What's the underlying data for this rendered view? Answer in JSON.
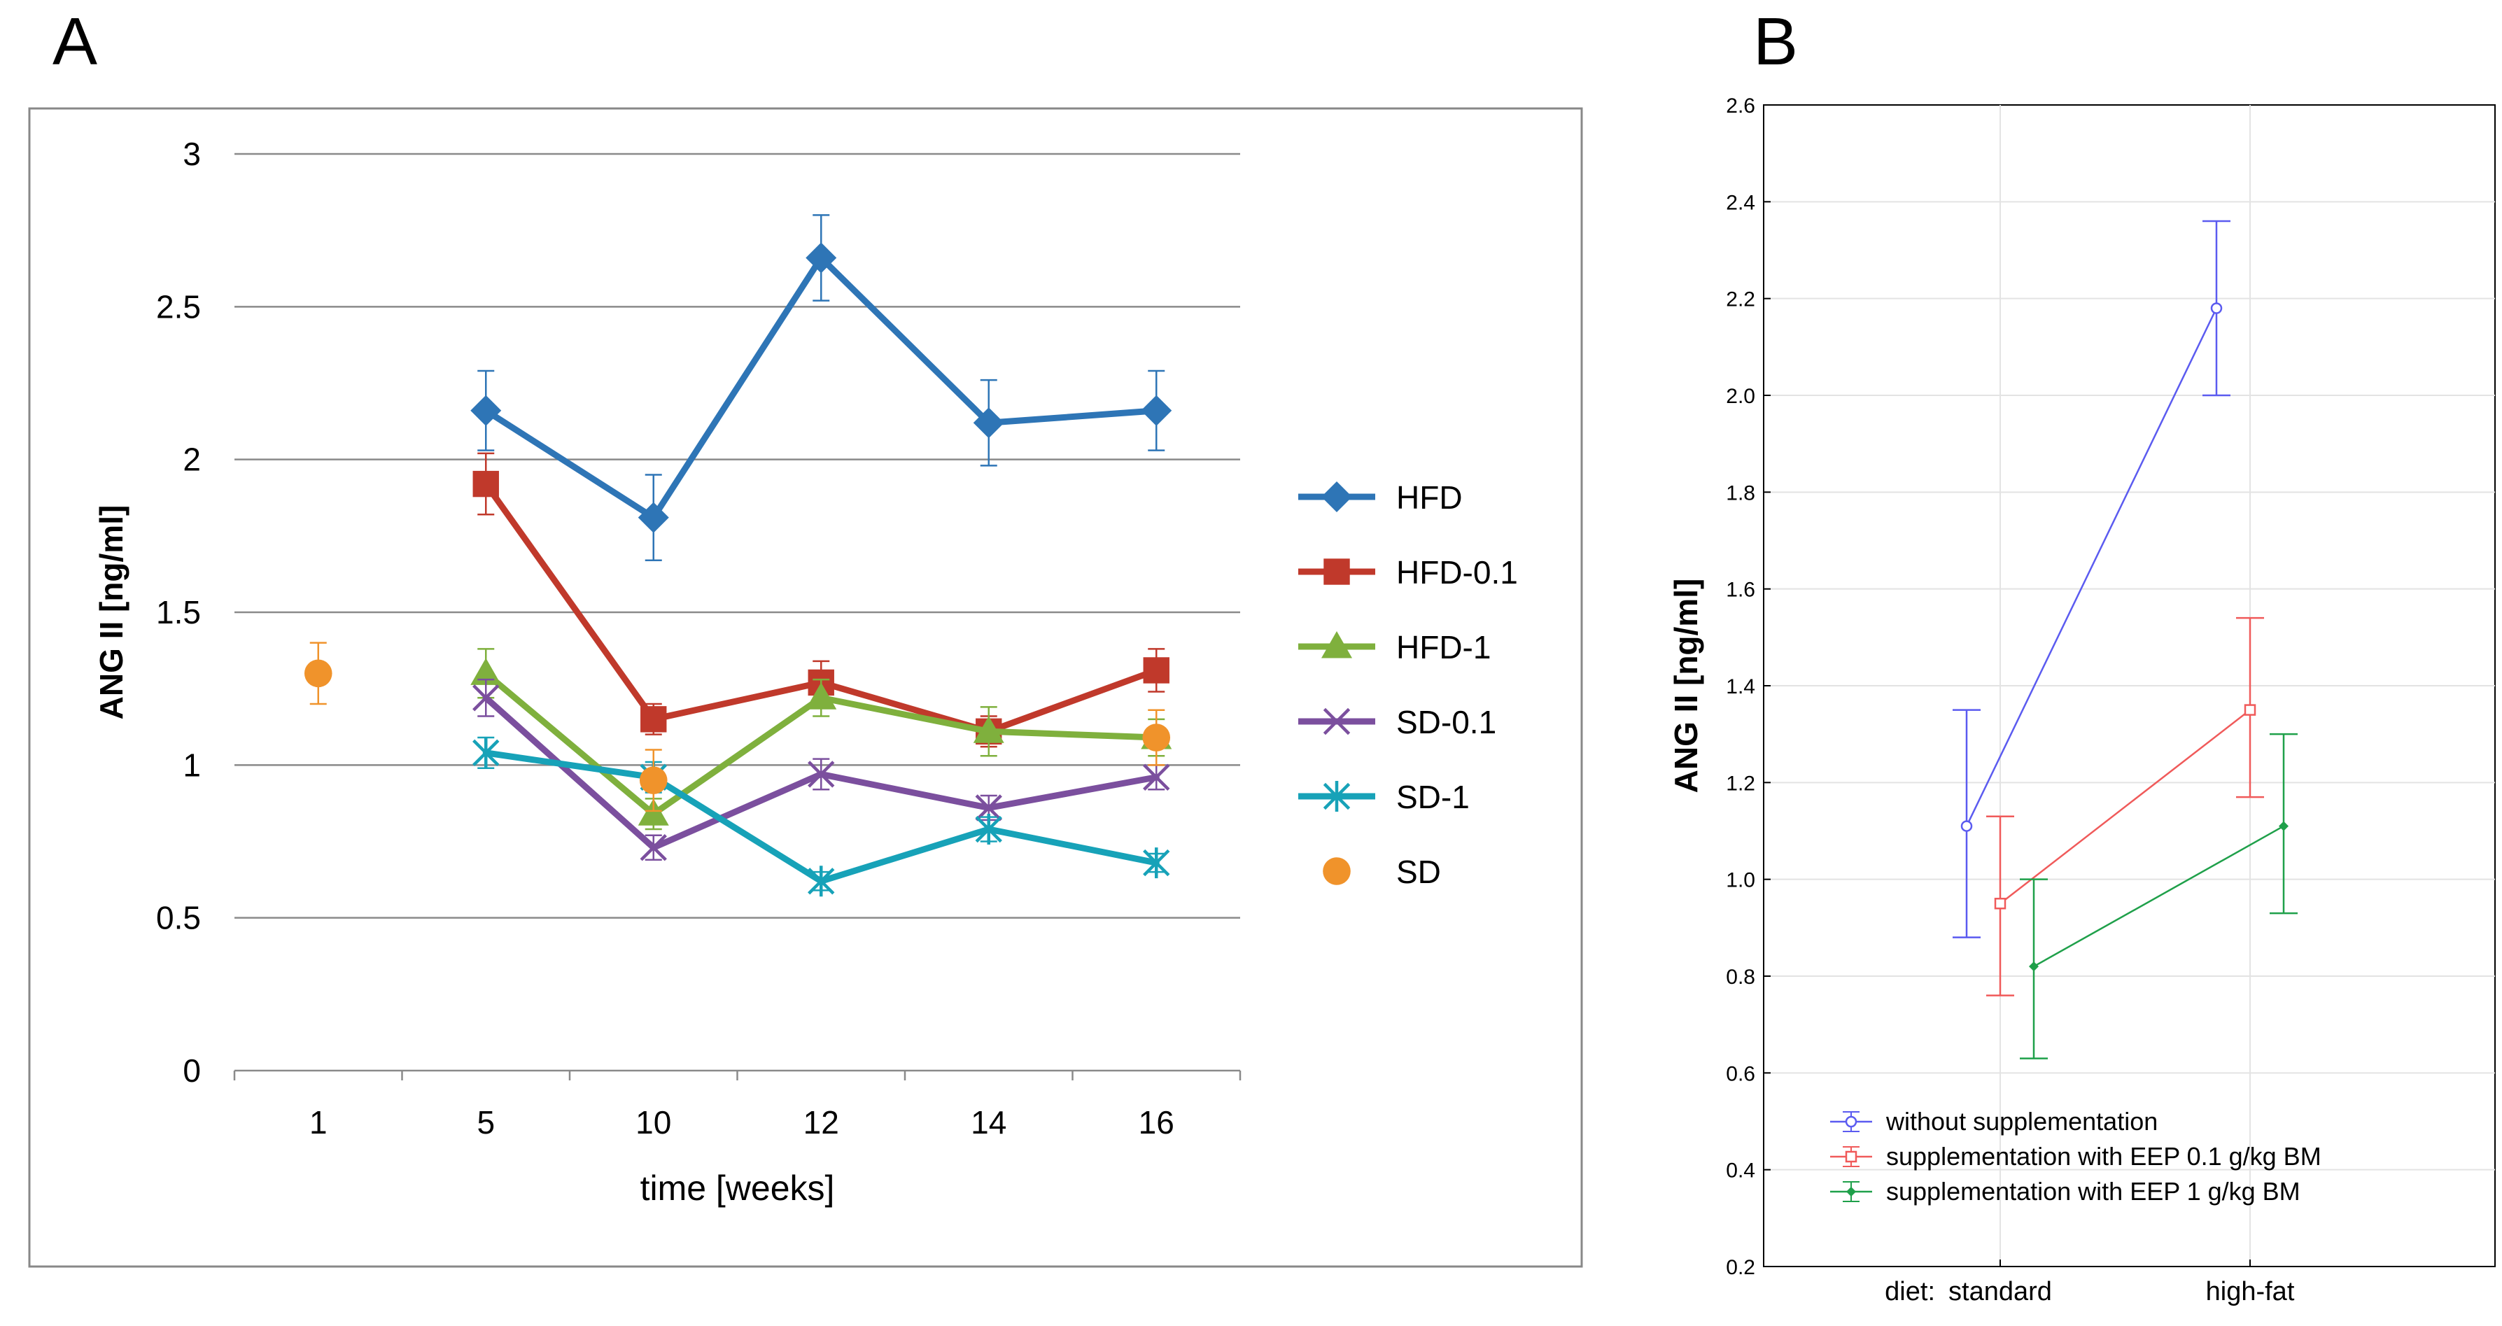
{
  "panel_a_label": "A",
  "panel_b_label": "B",
  "chart_data": [
    {
      "panel": "A",
      "type": "line",
      "title": "",
      "xlabel": "time [weeks]",
      "ylabel": "ANG II [ng/ml]",
      "categories": [
        "1",
        "5",
        "10",
        "12",
        "14",
        "16"
      ],
      "ylim": [
        0,
        3
      ],
      "yticks": [
        "0",
        "0.5",
        "1",
        "1.5",
        "2",
        "2.5",
        "3"
      ],
      "grid": true,
      "legend_position": "right",
      "series": [
        {
          "name": "HFD",
          "color": "#2E75B6",
          "marker": "diamond",
          "values": [
            null,
            2.16,
            1.81,
            2.66,
            2.12,
            2.16
          ],
          "errors": [
            null,
            0.13,
            0.14,
            0.14,
            0.14,
            0.13
          ]
        },
        {
          "name": "HFD-0.1",
          "color": "#C0392B",
          "marker": "square",
          "values": [
            null,
            1.92,
            1.15,
            1.27,
            1.11,
            1.31
          ],
          "errors": [
            null,
            0.1,
            0.05,
            0.07,
            0.05,
            0.07
          ]
        },
        {
          "name": "HFD-1",
          "color": "#7FB03D",
          "marker": "triangle",
          "values": [
            null,
            1.3,
            0.84,
            1.22,
            1.11,
            1.09
          ],
          "errors": [
            null,
            0.08,
            0.05,
            0.06,
            0.08,
            0.06
          ]
        },
        {
          "name": "SD-0.1",
          "color": "#7B4F9E",
          "marker": "x",
          "values": [
            null,
            1.22,
            0.73,
            0.97,
            0.86,
            0.96
          ],
          "errors": [
            null,
            0.06,
            0.04,
            0.05,
            0.04,
            0.04
          ]
        },
        {
          "name": "SD-1",
          "color": "#17A2B8",
          "marker": "asterisk",
          "values": [
            null,
            1.04,
            0.96,
            0.62,
            0.79,
            0.68
          ],
          "errors": [
            null,
            0.05,
            0.05,
            0.03,
            0.04,
            0.03
          ]
        },
        {
          "name": "SD",
          "color": "#F0932B",
          "marker": "circle",
          "values": [
            1.3,
            null,
            0.95,
            null,
            null,
            1.09
          ],
          "errors": [
            0.1,
            null,
            0.1,
            null,
            null,
            0.09
          ]
        }
      ]
    },
    {
      "panel": "B",
      "type": "line",
      "title": "",
      "xlabel_prefix": "diet:",
      "xlabel": "",
      "ylabel": "ANG II [ng/ml]",
      "categories": [
        "standard",
        "high-fat"
      ],
      "ylim": [
        0.2,
        2.6
      ],
      "yticks": [
        "0.2",
        "0.4",
        "0.6",
        "0.8",
        "1.0",
        "1.2",
        "1.4",
        "1.6",
        "1.8",
        "2.0",
        "2.2",
        "2.4",
        "2.6"
      ],
      "grid": true,
      "legend_position": "bottom-left",
      "series": [
        {
          "name": "without  supplementation",
          "color": "#5B5BF0",
          "marker": "circle-open",
          "values": [
            1.11,
            2.18
          ],
          "lower": [
            0.88,
            2.0
          ],
          "upper": [
            1.35,
            2.36
          ]
        },
        {
          "name": "supplementation  with  EEP 0.1 g/kg BM",
          "color": "#F05A5A",
          "marker": "square-open",
          "values": [
            0.95,
            1.35
          ],
          "lower": [
            0.76,
            1.17
          ],
          "upper": [
            1.13,
            1.54
          ]
        },
        {
          "name": "supplementation  with  EEP 1 g/kg BM",
          "color": "#1FA04A",
          "marker": "diamond-filled",
          "values": [
            0.82,
            1.11
          ],
          "lower": [
            0.63,
            0.93
          ],
          "upper": [
            1.0,
            1.3
          ]
        }
      ]
    }
  ]
}
